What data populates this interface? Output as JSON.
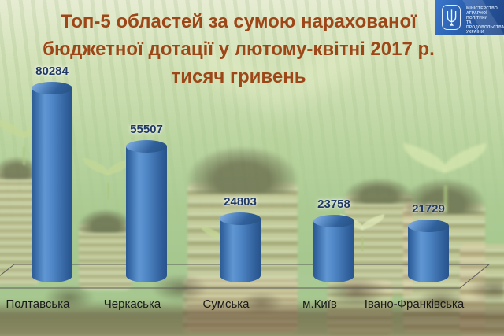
{
  "slide": {
    "title_lines": [
      "Топ-5 областей за сумою нарахованої",
      "бюджетної дотації у лютому-квітні 2017 р.",
      "тисяч гривень"
    ]
  },
  "logo": {
    "org_lines": [
      "МІНІСТЕРСТВО",
      "АГРАРНОЇ ПОЛІТИКИ",
      "ТА ПРОДОВОЛЬСТВА",
      "УКРАЇНИ"
    ],
    "emblem": "ukraine-tryzub-icon",
    "bg_color": "#2A5FAE"
  },
  "chart_data": {
    "type": "bar",
    "style": "3d-cylinder",
    "title": "Топ-5 областей за сумою нарахованої бюджетної дотації у лютому-квітні 2017 р.",
    "units_label": "тисяч гривень",
    "categories": [
      "Полтавська",
      "Черкаська",
      "Сумська",
      "м.Київ",
      "Івано-Франківська"
    ],
    "values": [
      80284,
      55507,
      24803,
      23758,
      21729
    ],
    "value_labels": [
      "80284",
      "55507",
      "24803",
      "23758",
      "21729"
    ],
    "ylim": [
      0,
      85000
    ],
    "grid": false,
    "legend": false,
    "colors": {
      "bar": "#3D6FAE",
      "value_label": "#1F3864",
      "category_label": "#1A1A1A",
      "title": "#9D4718"
    }
  }
}
